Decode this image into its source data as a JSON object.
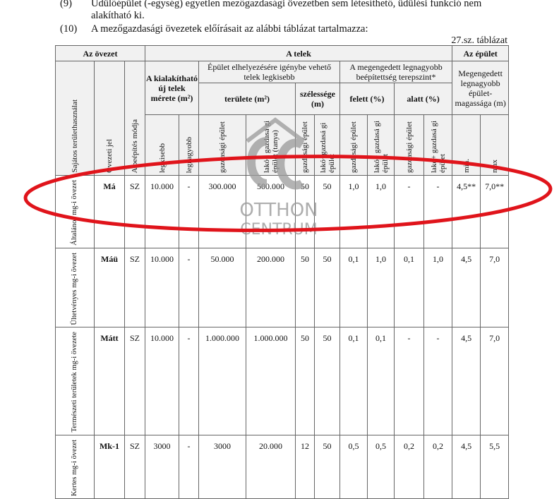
{
  "paragraphs": [
    {
      "num": "(9)",
      "text": "Üdülőépület (-egység) egyetlen mezőgazdasági övezetben sem létesíthető, üdülési funkció nem alakítható ki."
    },
    {
      "num": "(10)",
      "text": "A mezőgazdasági övezetek előírásait az alábbi táblázat tartalmazza:"
    }
  ],
  "caption": "27.sz. táblázat",
  "table": {
    "groups": {
      "zone": "Az övezet",
      "plot": "A telek",
      "building": "Az épület"
    },
    "sub": {
      "new_plot": "A kialakítható új telek mérete (m²)",
      "min_plot": "Épület elhelyezésére igénybe vehető telek legkisebb",
      "coverage": "A megengedett legnagyobb beépítettség terepszint*",
      "height": "Megengedett legnagyobb épület-magassága (m)",
      "area": "területe (m²)",
      "width": "szélessége (m)",
      "above": "felett (%)",
      "below": "alatt (%)"
    },
    "cols": [
      "Sajátos területhasználat",
      "Övezeti jel",
      "A beépítés módja",
      "legkisebb",
      "legnagyobb",
      "gazdasági épület",
      "lakó+ gazdasá gi épület (tanya)",
      "gazdasági épület",
      "lakó+gazdasá gi épület",
      "gazdasági épület",
      "lakó+ gazdasá gi épület",
      "gazdasági épület",
      "lakó+ gazdasá gi épület",
      "min.",
      "max"
    ],
    "rows": [
      {
        "use": "Általános mg-i övezet",
        "code": "Má",
        "mode": "SZ",
        "values": [
          "10.000",
          "-",
          "300.000",
          "500.000",
          "50",
          "50",
          "1,0",
          "1,0",
          "-",
          "-",
          "4,5**",
          "7,0**"
        ]
      },
      {
        "use": "Ültetvényes mg-i övezet",
        "code": "Máü",
        "mode": "SZ",
        "values": [
          "10.000",
          "-",
          "50.000",
          "200.000",
          "50",
          "50",
          "0,1",
          "1,0",
          "0,1",
          "1,0",
          "4,5",
          "7,0"
        ]
      },
      {
        "use": "Természeti területek mg-i övezete",
        "code": "Mátt",
        "mode": "SZ",
        "values": [
          "10.000",
          "-",
          "1.000.000",
          "1.000.000",
          "50",
          "50",
          "0,1",
          "0,1",
          "-",
          "-",
          "4,5",
          "7,0"
        ]
      },
      {
        "use": "Kertes mg-i övezet",
        "code": "Mk-1",
        "mode": "SZ",
        "values": [
          "3000",
          "-",
          "3000",
          "20.000",
          "12",
          "50",
          "0,5",
          "0,5",
          "0,2",
          "0,2",
          "4,5",
          "5,5"
        ]
      }
    ]
  },
  "watermark": {
    "line1": "OTTHON",
    "line2": "CENTRUM",
    "mark": "OC"
  },
  "colors": {
    "annotation": "#e0141b",
    "watermark": "#9a9a9a"
  }
}
